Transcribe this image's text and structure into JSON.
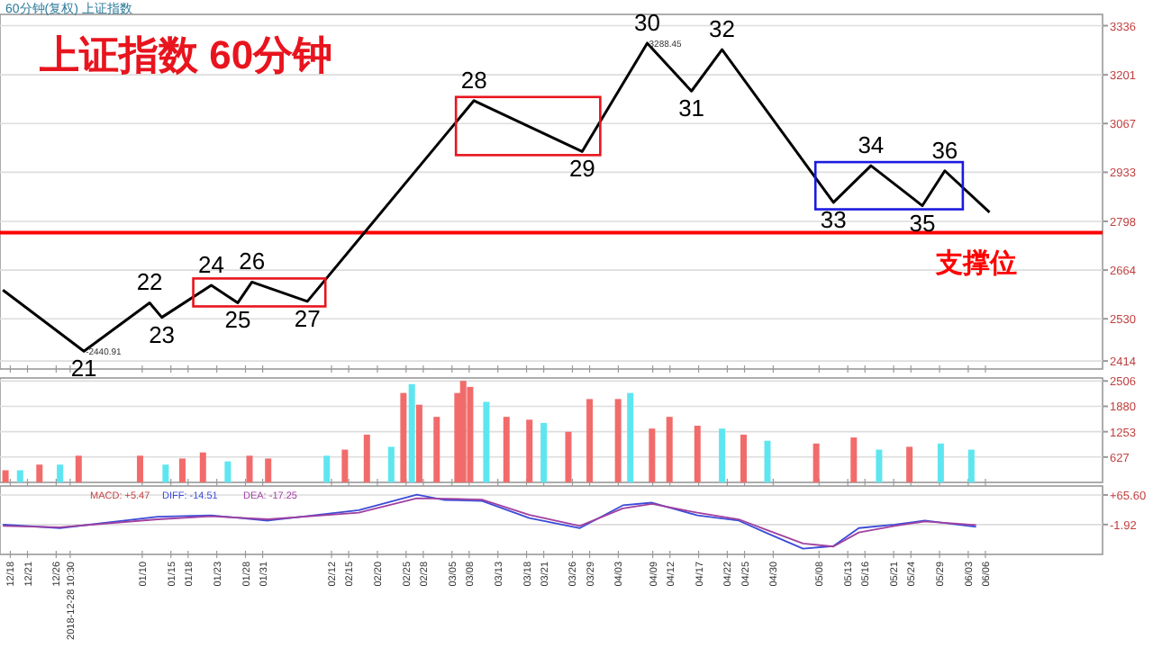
{
  "chart_data": [
    {
      "type": "line",
      "title": "上证指数  60分钟",
      "subtitle": "60分钟(复权) 上证指数",
      "xlim": [
        "2018-12-16T05:00",
        "2019-06-26T10:00"
      ],
      "ylim": [
        2392,
        3367
      ],
      "yticks": [
        2414,
        2530,
        2664,
        2798,
        2933,
        3067,
        3201,
        3336
      ],
      "grid": "y",
      "tick_labels": "y",
      "series": [
        {
          "color": "#000000",
          "x": [
            "2018-12-16T17:00",
            "2018-12-30T20:00",
            "2019-01-11T07:00",
            "2019-01-13T10:00",
            "2019-01-22T01:00",
            "2019-01-26T16:00",
            "2019-01-29T03:00",
            "2019-02-07T19:00",
            "2019-03-08T20:00",
            "2019-03-27T17:00",
            "2019-04-08T01:00",
            "2019-04-15T18:00",
            "2019-04-21T02:00",
            "2019-05-10T12:00",
            "2019-05-17T01:00",
            "2019-05-26T00:00",
            "2019-05-29T22:00",
            "2019-06-06T17:00"
          ],
          "values": [
            2609,
            2441,
            2574,
            2534,
            2622,
            2574,
            2631,
            2578,
            3130,
            2990,
            3288,
            3156,
            3270,
            2850,
            2951,
            2841,
            2937,
            2823
          ]
        }
      ],
      "ref_lines": [
        {
          "axis": "y",
          "value": 2767,
          "label": "支撑位",
          "color": "#ff0000"
        }
      ],
      "xticks": [
        {
          "value": "2018-12-18",
          "label": null
        },
        {
          "value": "2018-12-21",
          "label": null
        },
        {
          "value": "2018-12-26",
          "label": null
        },
        {
          "value": "2018-12-28T10:30",
          "label": null
        },
        {
          "value": "2019-01-10",
          "label": null
        },
        {
          "value": "2019-01-15",
          "label": null
        },
        {
          "value": "2019-01-18",
          "label": null
        },
        {
          "value": "2019-01-23",
          "label": null
        },
        {
          "value": "2019-01-28",
          "label": null
        },
        {
          "value": "2019-01-31",
          "label": null
        },
        {
          "value": "2019-02-12",
          "label": null
        },
        {
          "value": "2019-02-15",
          "label": null
        },
        {
          "value": "2019-02-20",
          "label": null
        },
        {
          "value": "2019-02-25",
          "label": null
        },
        {
          "value": "2019-02-28",
          "label": null
        },
        {
          "value": "2019-03-05",
          "label": null
        },
        {
          "value": "2019-03-08",
          "label": null
        },
        {
          "value": "2019-03-13",
          "label": null
        },
        {
          "value": "2019-03-18",
          "label": null
        },
        {
          "value": "2019-03-21",
          "label": null
        },
        {
          "value": "2019-03-26",
          "label": null
        },
        {
          "value": "2019-03-29",
          "label": null
        },
        {
          "value": "2019-04-03",
          "label": null
        },
        {
          "value": "2019-04-09",
          "label": null
        },
        {
          "value": "2019-04-12",
          "label": null
        },
        {
          "value": "2019-04-17",
          "label": null
        },
        {
          "value": "2019-04-22",
          "label": null
        },
        {
          "value": "2019-04-25",
          "label": null
        },
        {
          "value": "2019-04-30",
          "label": null
        },
        {
          "value": "2019-05-08",
          "label": null
        },
        {
          "value": "2019-05-13",
          "label": null
        },
        {
          "value": "2019-05-16",
          "label": null
        },
        {
          "value": "2019-05-21",
          "label": null
        },
        {
          "value": "2019-05-24",
          "label": null
        },
        {
          "value": "2019-05-29",
          "label": null
        },
        {
          "value": "2019-06-03",
          "label": null
        },
        {
          "value": "2019-06-06",
          "label": null
        }
      ],
      "annotations": [
        {
          "text": "21",
          "x": "2018-12-30T20:00",
          "y": 2441
        },
        {
          "text": "22",
          "x": "2019-01-11T07:00",
          "y": 2574
        },
        {
          "text": "23",
          "x": "2019-01-13T10:00",
          "y": 2534
        },
        {
          "text": "24",
          "x": "2019-01-22T01:00",
          "y": 2622
        },
        {
          "text": "25",
          "x": "2019-01-26T16:00",
          "y": 2574
        },
        {
          "text": "26",
          "x": "2019-01-29T03:00",
          "y": 2631
        },
        {
          "text": "27",
          "x": "2019-02-07T19:00",
          "y": 2578
        },
        {
          "text": "28",
          "x": "2019-03-08T20:00",
          "y": 3130
        },
        {
          "text": "29",
          "x": "2019-03-27T17:00",
          "y": 2990
        },
        {
          "text": "30",
          "x": "2019-04-08T01:00",
          "y": 3288
        },
        {
          "text": "31",
          "x": "2019-04-15T18:00",
          "y": 3156
        },
        {
          "text": "32",
          "x": "2019-04-21T02:00",
          "y": 3270
        },
        {
          "text": "33",
          "x": "2019-05-10T12:00",
          "y": 2850
        },
        {
          "text": "34",
          "x": "2019-05-17T01:00",
          "y": 2951
        },
        {
          "text": "35",
          "x": "2019-05-26T00:00",
          "y": 2841
        },
        {
          "text": "36",
          "x": "2019-05-29T22:00",
          "y": 2937
        },
        {
          "text": "-2440.91",
          "x": "2018-12-30T20:00",
          "y": 2441
        },
        {
          "text": "3288.45",
          "x": "2019-04-08T01:00",
          "y": 3288
        }
      ]
    },
    {
      "type": "bar",
      "xlim": [
        "2018-12-16T05:00",
        "2019-06-26T10:00"
      ],
      "ylim": [
        0,
        2580
      ],
      "yticks": [
        627,
        1253,
        1880,
        2506
      ],
      "grid": "y",
      "tick_labels": "y",
      "xticks": [
        {
          "value": "2018-12-18",
          "label": null
        },
        {
          "value": "2018-12-21",
          "label": null
        },
        {
          "value": "2018-12-26",
          "label": null
        },
        {
          "value": "2018-12-28T10:30",
          "label": null
        },
        {
          "value": "2019-01-10",
          "label": null
        },
        {
          "value": "2019-01-15",
          "label": null
        },
        {
          "value": "2019-01-18",
          "label": null
        },
        {
          "value": "2019-01-23",
          "label": null
        },
        {
          "value": "2019-01-28",
          "label": null
        },
        {
          "value": "2019-01-31",
          "label": null
        },
        {
          "value": "2019-02-12",
          "label": null
        },
        {
          "value": "2019-02-15",
          "label": null
        },
        {
          "value": "2019-02-20",
          "label": null
        },
        {
          "value": "2019-02-25",
          "label": null
        },
        {
          "value": "2019-02-28",
          "label": null
        },
        {
          "value": "2019-03-05",
          "label": null
        },
        {
          "value": "2019-03-08",
          "label": null
        },
        {
          "value": "2019-03-13",
          "label": null
        },
        {
          "value": "2019-03-18",
          "label": null
        },
        {
          "value": "2019-03-21",
          "label": null
        },
        {
          "value": "2019-03-26",
          "label": null
        },
        {
          "value": "2019-03-29",
          "label": null
        },
        {
          "value": "2019-04-03",
          "label": null
        },
        {
          "value": "2019-04-09",
          "label": null
        },
        {
          "value": "2019-04-12",
          "label": null
        },
        {
          "value": "2019-04-17",
          "label": null
        },
        {
          "value": "2019-04-22",
          "label": null
        },
        {
          "value": "2019-04-25",
          "label": null
        },
        {
          "value": "2019-04-30",
          "label": null
        },
        {
          "value": "2019-05-08",
          "label": null
        },
        {
          "value": "2019-05-13",
          "label": null
        },
        {
          "value": "2019-05-16",
          "label": null
        },
        {
          "value": "2019-05-21",
          "label": null
        },
        {
          "value": "2019-05-24",
          "label": null
        },
        {
          "value": "2019-05-29",
          "label": null
        },
        {
          "value": "2019-06-03",
          "label": null
        },
        {
          "value": "2019-06-06",
          "label": null
        }
      ],
      "x": [
        "2018-12-17T04:00",
        "2018-12-19T17:00",
        "2018-12-23T02:00",
        "2018-12-26T16:00",
        "2018-12-29T22:00",
        "2019-01-09T15:00",
        "2019-01-14T02:00",
        "2019-01-17T00:00",
        "2019-01-20T14:00",
        "2019-01-24T22:00",
        "2019-01-28T17:00",
        "2019-01-31T23:00",
        "2019-02-11T04:00",
        "2019-02-14T08:00",
        "2019-02-18T04:00",
        "2019-02-22T10:00",
        "2019-02-24T13:00",
        "2019-02-26T00:00",
        "2019-02-27T07:00",
        "2019-03-02T08:00",
        "2019-03-05T23:00",
        "2019-03-06T23:00",
        "2019-03-08T04:00",
        "2019-03-11T00:00",
        "2019-03-14T12:00",
        "2019-03-18T12:00",
        "2019-03-21T00:00",
        "2019-03-25T07:00",
        "2019-03-29T00:00",
        "2019-04-02T23:00",
        "2019-04-05T02:00",
        "2019-04-08T21:00",
        "2019-04-11T22:00",
        "2019-04-16T19:00",
        "2019-04-21T02:00",
        "2019-04-24T20:00",
        "2019-04-29T00:00",
        "2019-05-07T12:00",
        "2019-05-14T01:00",
        "2019-05-18T11:00",
        "2019-05-23T18:00",
        "2019-05-29T05:00",
        "2019-06-03T13:00"
      ],
      "values": [
        300,
        300,
        440,
        440,
        660,
        660,
        440,
        590,
        740,
        520,
        660,
        590,
        660,
        810,
        1180,
        880,
        2210,
        2430,
        1920,
        1620,
        2210,
        2510,
        2360,
        1990,
        1620,
        1550,
        1470,
        1250,
        2060,
        2060,
        2210,
        1330,
        1620,
        1400,
        1330,
        1180,
        1030,
        960,
        1110,
        810,
        880,
        960,
        810
      ],
      "colors": [
        "#f26b6b",
        "#5ee6f0",
        "#f26b6b",
        "#5ee6f0",
        "#f26b6b",
        "#f26b6b",
        "#5ee6f0",
        "#f26b6b",
        "#f26b6b",
        "#5ee6f0",
        "#f26b6b",
        "#f26b6b",
        "#5ee6f0",
        "#f26b6b",
        "#f26b6b",
        "#5ee6f0",
        "#f26b6b",
        "#5ee6f0",
        "#f26b6b",
        "#f26b6b",
        "#f26b6b",
        "#f26b6b",
        "#f26b6b",
        "#5ee6f0",
        "#f26b6b",
        "#f26b6b",
        "#5ee6f0",
        "#f26b6b",
        "#f26b6b",
        "#f26b6b",
        "#5ee6f0",
        "#f26b6b",
        "#f26b6b",
        "#f26b6b",
        "#5ee6f0",
        "#f26b6b",
        "#5ee6f0",
        "#f26b6b",
        "#f26b6b",
        "#5ee6f0",
        "#f26b6b",
        "#5ee6f0",
        "#5ee6f0"
      ]
    },
    {
      "type": "line",
      "xlim": [
        "2018-12-16T05:00",
        "2019-06-26T10:00"
      ],
      "ylim": [
        -70,
        86
      ],
      "yticks": [
        {
          "value": 65.6,
          "label": "+65.60"
        },
        -1.92
      ],
      "grid": "y",
      "xticks": [
        {
          "value": "2018-12-18",
          "label": "12/18"
        },
        {
          "value": "2018-12-21",
          "label": "12/21"
        },
        {
          "value": "2018-12-26",
          "label": "12/26"
        },
        {
          "value": "2018-12-28T10:30",
          "label": "2018-12-28 10:30"
        },
        {
          "value": "2019-01-10",
          "label": "01/10"
        },
        {
          "value": "2019-01-15",
          "label": "01/15"
        },
        {
          "value": "2019-01-18",
          "label": "01/18"
        },
        {
          "value": "2019-01-23",
          "label": "01/23"
        },
        {
          "value": "2019-01-28",
          "label": "01/28"
        },
        {
          "value": "2019-01-31",
          "label": "01/31"
        },
        {
          "value": "2019-02-12",
          "label": "02/12"
        },
        {
          "value": "2019-02-15",
          "label": "02/15"
        },
        {
          "value": "2019-02-20",
          "label": "02/20"
        },
        {
          "value": "2019-02-25",
          "label": "02/25"
        },
        {
          "value": "2019-02-28",
          "label": "02/28"
        },
        {
          "value": "2019-03-05",
          "label": "03/05"
        },
        {
          "value": "2019-03-08",
          "label": "03/08"
        },
        {
          "value": "2019-03-13",
          "label": "03/13"
        },
        {
          "value": "2019-03-18",
          "label": "03/18"
        },
        {
          "value": "2019-03-21",
          "label": "03/21"
        },
        {
          "value": "2019-03-26",
          "label": "03/26"
        },
        {
          "value": "2019-03-29",
          "label": "03/29"
        },
        {
          "value": "2019-04-03",
          "label": "04/03"
        },
        {
          "value": "2019-04-09",
          "label": "04/09"
        },
        {
          "value": "2019-04-12",
          "label": "04/12"
        },
        {
          "value": "2019-04-17",
          "label": "04/17"
        },
        {
          "value": "2019-04-22",
          "label": "04/22"
        },
        {
          "value": "2019-04-25",
          "label": "04/25"
        },
        {
          "value": "2019-04-30",
          "label": "04/30"
        },
        {
          "value": "2019-05-08",
          "label": "05/08"
        },
        {
          "value": "2019-05-13",
          "label": "05/13"
        },
        {
          "value": "2019-05-16",
          "label": "05/16"
        },
        {
          "value": "2019-05-21",
          "label": "05/21"
        },
        {
          "value": "2019-05-24",
          "label": "05/24"
        },
        {
          "value": "2019-05-29",
          "label": "05/29"
        },
        {
          "value": "2019-06-03",
          "label": "06/03"
        },
        {
          "value": "2019-06-06",
          "label": "06/06"
        }
      ],
      "x": [
        "2018-12-16T17:00",
        "2018-12-26T16:00",
        "2019-01-12T17:00",
        "2019-01-22T01:00",
        "2019-01-31T23:00",
        "2019-02-16T18:00",
        "2019-02-26T21:00",
        "2019-03-03T18:00",
        "2019-03-10T06:00",
        "2019-03-18T12:00",
        "2019-03-27T07:00",
        "2019-04-03T19:00",
        "2019-04-08T21:00",
        "2019-04-16T19:00",
        "2019-04-24T00:00",
        "2019-04-29T00:00",
        "2019-05-05T05:00",
        "2019-05-10T12:00",
        "2019-05-14T22:00",
        "2019-05-21T04:00",
        "2019-05-26T10:00",
        "2019-06-04T09:00"
      ],
      "series": [
        {
          "name": "DIFF: -14.51",
          "color": "#3a4bd8",
          "values": [
            -2,
            -10,
            16,
            19,
            7,
            31,
            66,
            54,
            52,
            13,
            -10,
            42,
            48,
            19,
            7,
            -22,
            -57,
            -51,
            -10,
            -2,
            7,
            -7
          ]
        },
        {
          "name": "DEA: -17.25",
          "color": "#a040a0",
          "values": [
            -5,
            -8,
            10,
            17,
            10,
            25,
            58,
            57,
            55,
            20,
            -5,
            35,
            45,
            25,
            10,
            -15,
            -45,
            -52,
            -20,
            -5,
            5,
            -3
          ]
        }
      ],
      "annotations": [
        "MACD: +5.47"
      ]
    }
  ]
}
